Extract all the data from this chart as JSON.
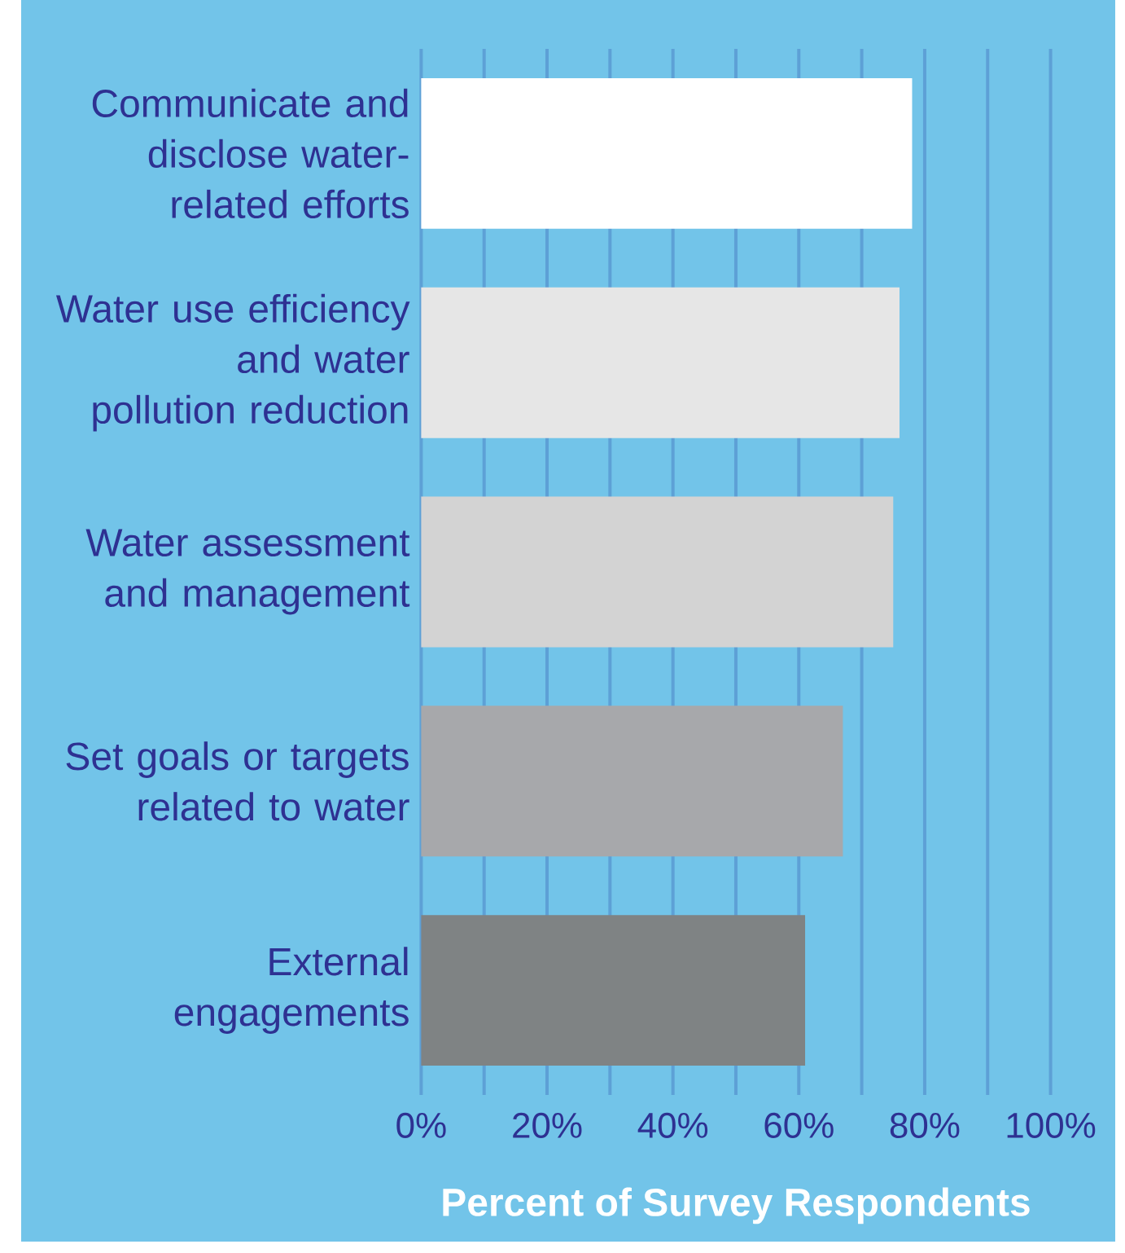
{
  "chart_data": {
    "type": "bar",
    "orientation": "horizontal",
    "xlabel": "Percent of Survey Respondents",
    "categories": [
      "Communicate and disclose water-related efforts",
      "Water use efficiency and water pollution reduction",
      "Water assessment and management",
      "Set goals or targets related to water",
      "External engagements"
    ],
    "values": [
      78,
      76,
      75,
      67,
      61
    ],
    "colors": [
      "#ffffff",
      "#e6e6e6",
      "#d3d3d3",
      "#a7a8ab",
      "#7f8384"
    ],
    "xlim": [
      0,
      100
    ],
    "xticks": [
      {
        "value": 0,
        "label": "0%"
      },
      {
        "value": 10,
        "label": null
      },
      {
        "value": 20,
        "label": "20%"
      },
      {
        "value": 30,
        "label": null
      },
      {
        "value": 40,
        "label": "40%"
      },
      {
        "value": 50,
        "label": null
      },
      {
        "value": 60,
        "label": "60%"
      },
      {
        "value": 70,
        "label": null
      },
      {
        "value": 80,
        "label": "80%"
      },
      {
        "value": 90,
        "label": null
      },
      {
        "value": 100,
        "label": "100%"
      }
    ],
    "grid": "x"
  }
}
